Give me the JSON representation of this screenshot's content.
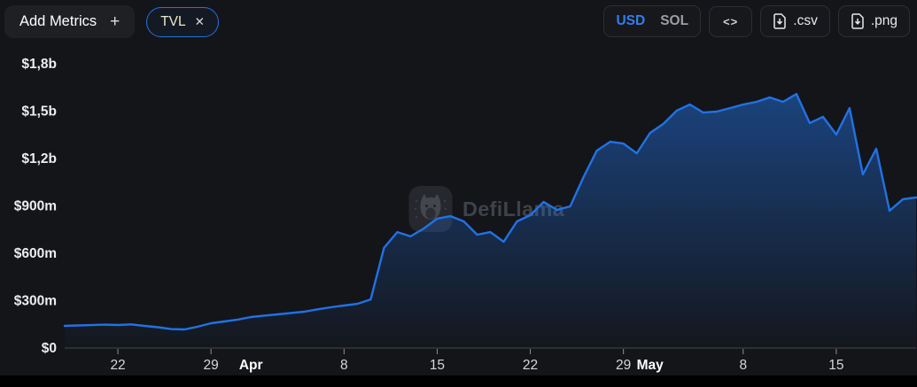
{
  "toolbar": {
    "add_metrics_label": "Add Metrics",
    "add_metrics_plus": "+",
    "metric_chip": {
      "label": "TVL",
      "close": "✕"
    },
    "currency_toggle": {
      "usd": "USD",
      "sol": "SOL",
      "active": "USD"
    },
    "embed_code_label": "<>",
    "csv_label": ".csv",
    "png_label": ".png"
  },
  "watermark": {
    "text": "DefiLlama"
  },
  "colors": {
    "background": "#141519",
    "line": "#2172e5",
    "chip_border": "#2172e5",
    "usd_active": "#2f80ed",
    "axis_label": "#eceded"
  },
  "chart_data": {
    "type": "area",
    "title": "TVL",
    "currency": "USD",
    "line_color": "#2172e5",
    "ylim": [
      0,
      1800
    ],
    "unit": "millions USD",
    "grid": false,
    "legend": false,
    "y_ticks": [
      {
        "label": "$0",
        "value": 0
      },
      {
        "label": "$300m",
        "value": 300
      },
      {
        "label": "$600m",
        "value": 600
      },
      {
        "label": "$900m",
        "value": 900
      },
      {
        "label": "$1,2b",
        "value": 1200
      },
      {
        "label": "$1,5b",
        "value": 1500
      },
      {
        "label": "$1,8b",
        "value": 1800
      }
    ],
    "x_ticks": [
      {
        "label": "22",
        "day": 4,
        "month": false
      },
      {
        "label": "29",
        "day": 11,
        "month": false
      },
      {
        "label": "Apr",
        "day": 14,
        "month": true
      },
      {
        "label": "8",
        "day": 21,
        "month": false
      },
      {
        "label": "15",
        "day": 28,
        "month": false
      },
      {
        "label": "22",
        "day": 35,
        "month": false
      },
      {
        "label": "29",
        "day": 42,
        "month": false
      },
      {
        "label": "May",
        "day": 44,
        "month": true
      },
      {
        "label": "8",
        "day": 51,
        "month": false
      },
      {
        "label": "15",
        "day": 58,
        "month": false
      }
    ],
    "dates": [
      "Mar 18",
      "Mar 19",
      "Mar 20",
      "Mar 21",
      "Mar 22",
      "Mar 23",
      "Mar 24",
      "Mar 25",
      "Mar 26",
      "Mar 27",
      "Mar 28",
      "Mar 29",
      "Mar 30",
      "Mar 31",
      "Apr 1",
      "Apr 2",
      "Apr 3",
      "Apr 4",
      "Apr 5",
      "Apr 6",
      "Apr 7",
      "Apr 8",
      "Apr 9",
      "Apr 10",
      "Apr 11",
      "Apr 12",
      "Apr 13",
      "Apr 14",
      "Apr 15",
      "Apr 16",
      "Apr 17",
      "Apr 18",
      "Apr 19",
      "Apr 20",
      "Apr 21",
      "Apr 22",
      "Apr 23",
      "Apr 24",
      "Apr 25",
      "Apr 26",
      "Apr 27",
      "Apr 28",
      "Apr 29",
      "Apr 30",
      "May 1",
      "May 2",
      "May 3",
      "May 4",
      "May 5",
      "May 6",
      "May 7",
      "May 8",
      "May 9",
      "May 10",
      "May 11",
      "May 12",
      "May 13",
      "May 14",
      "May 15",
      "May 16",
      "May 17",
      "May 18",
      "May 19",
      "May 20",
      "May 21"
    ],
    "values_usd_m": [
      140,
      143,
      145,
      148,
      146,
      150,
      140,
      132,
      120,
      118,
      135,
      157,
      168,
      180,
      196,
      205,
      213,
      222,
      230,
      245,
      258,
      269,
      280,
      308,
      634,
      734,
      707,
      757,
      819,
      835,
      802,
      718,
      734,
      673,
      802,
      841,
      925,
      875,
      897,
      1082,
      1250,
      1306,
      1295,
      1233,
      1362,
      1419,
      1503,
      1542,
      1491,
      1497,
      1519,
      1542,
      1559,
      1587,
      1559,
      1609,
      1425,
      1464,
      1352,
      1519,
      1099,
      1262,
      869,
      942,
      953
    ]
  }
}
